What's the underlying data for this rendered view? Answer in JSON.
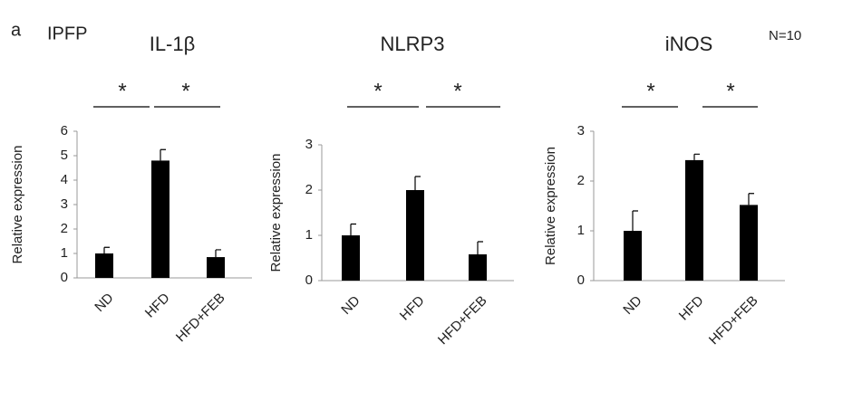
{
  "panel": "a",
  "tissue": "IPFP",
  "note": "N=10",
  "chart_data": [
    {
      "type": "bar",
      "title": "IL-1β",
      "ylabel": "Relative expression",
      "categories": [
        "ND",
        "HFD",
        "HFD+FEB"
      ],
      "values": [
        1.0,
        4.8,
        0.85
      ],
      "errors": [
        0.25,
        0.45,
        0.3
      ],
      "color": "#000000",
      "category_label_color": "#808080",
      "ylim": [
        0,
        6
      ],
      "yticks": [
        0,
        1,
        2,
        3,
        4,
        5,
        6
      ],
      "annotations": [
        "*",
        "*"
      ]
    },
    {
      "type": "bar",
      "title": "NLRP3",
      "ylabel": "Relative expression",
      "categories": [
        "ND",
        "HFD",
        "HFD+FEB"
      ],
      "values": [
        1.0,
        2.0,
        0.58
      ],
      "errors": [
        0.25,
        0.3,
        0.28
      ],
      "color": "#000000",
      "category_label_color": "#000000",
      "ylim": [
        0,
        3
      ],
      "yticks": [
        0,
        1,
        2,
        3
      ],
      "annotations": [
        "*",
        "*"
      ]
    },
    {
      "type": "bar",
      "title": "iNOS",
      "ylabel": "Relative expression",
      "categories": [
        "ND",
        "HFD",
        "HFD+FEB"
      ],
      "values": [
        1.0,
        2.42,
        1.52
      ],
      "errors": [
        0.4,
        0.12,
        0.23
      ],
      "color": "#000000",
      "category_label_color": "#000000",
      "ylim": [
        0,
        3
      ],
      "yticks": [
        0,
        1,
        2,
        3
      ],
      "annotations": [
        "*",
        "*"
      ]
    }
  ]
}
